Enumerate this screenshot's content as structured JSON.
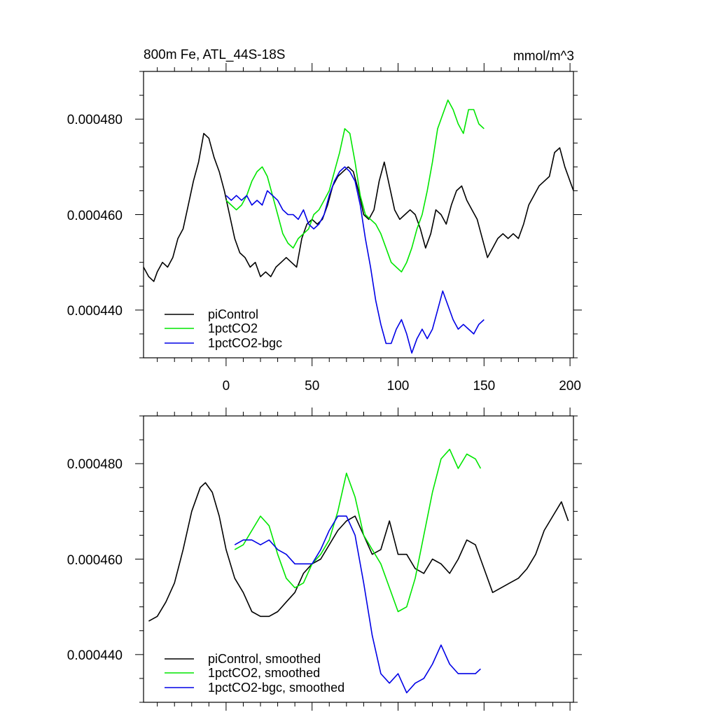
{
  "chart_data": [
    {
      "type": "line",
      "panel": "top",
      "title_left": "800m Fe, ATL_44S-18S",
      "title_right": "mmol/m^3",
      "xlim": [
        -48,
        202
      ],
      "ylim": [
        0.00043,
        0.00049
      ],
      "x_ticks": [
        0,
        50,
        100,
        150,
        200
      ],
      "x_tick_labels": [
        "0",
        "50",
        "100",
        "150",
        "200"
      ],
      "y_ticks": [
        0.00044,
        0.00046,
        0.00048
      ],
      "y_tick_labels": [
        "0.000440",
        "0.000460",
        "0.000480"
      ],
      "legend_position": "bottom-left",
      "series": [
        {
          "name": "piControl",
          "color": "#000000",
          "x": [
            -48,
            -45,
            -42,
            -40,
            -37,
            -34,
            -31,
            -28,
            -25,
            -22,
            -19,
            -16,
            -13,
            -10,
            -7,
            -4,
            -1,
            2,
            5,
            8,
            11,
            14,
            17,
            20,
            23,
            26,
            29,
            32,
            35,
            38,
            41,
            44,
            47,
            50,
            53,
            56,
            59,
            62,
            65,
            68,
            71,
            74,
            77,
            80,
            83,
            86,
            89,
            92,
            95,
            98,
            101,
            104,
            107,
            110,
            113,
            116,
            119,
            122,
            125,
            128,
            131,
            134,
            137,
            140,
            143,
            146,
            149,
            152,
            155,
            158,
            161,
            164,
            167,
            170,
            173,
            176,
            179,
            182,
            185,
            188,
            191,
            194,
            197,
            200,
            202
          ],
          "values": [
            0.000449,
            0.000447,
            0.000446,
            0.000448,
            0.00045,
            0.000449,
            0.000451,
            0.000455,
            0.000457,
            0.000462,
            0.000467,
            0.000471,
            0.000477,
            0.000476,
            0.000472,
            0.000469,
            0.000465,
            0.00046,
            0.000455,
            0.000452,
            0.000451,
            0.000449,
            0.00045,
            0.000447,
            0.000448,
            0.000447,
            0.000449,
            0.00045,
            0.000451,
            0.00045,
            0.000449,
            0.000455,
            0.000458,
            0.000459,
            0.000458,
            0.000459,
            0.000462,
            0.000466,
            0.000468,
            0.000469,
            0.00047,
            0.000469,
            0.000465,
            0.00046,
            0.000459,
            0.000461,
            0.000467,
            0.000471,
            0.000466,
            0.000461,
            0.000459,
            0.00046,
            0.000461,
            0.00046,
            0.000457,
            0.000453,
            0.000456,
            0.000461,
            0.00046,
            0.000458,
            0.000462,
            0.000465,
            0.000466,
            0.000463,
            0.000461,
            0.000459,
            0.000455,
            0.000451,
            0.000453,
            0.000455,
            0.000456,
            0.000455,
            0.000456,
            0.000455,
            0.000458,
            0.000462,
            0.000464,
            0.000466,
            0.000467,
            0.000468,
            0.000473,
            0.000474,
            0.00047,
            0.000467,
            0.000465
          ]
        },
        {
          "name": "1pctCO2",
          "color": "#00e600",
          "x": [
            0,
            3,
            6,
            9,
            12,
            15,
            18,
            21,
            24,
            27,
            30,
            33,
            36,
            39,
            42,
            45,
            48,
            51,
            54,
            57,
            60,
            63,
            66,
            69,
            72,
            75,
            78,
            81,
            84,
            87,
            90,
            93,
            96,
            99,
            102,
            105,
            108,
            111,
            114,
            117,
            120,
            123,
            126,
            129,
            132,
            135,
            138,
            141,
            144,
            147,
            150
          ],
          "values": [
            0.000463,
            0.000462,
            0.000461,
            0.000462,
            0.000464,
            0.000467,
            0.000469,
            0.00047,
            0.000468,
            0.000464,
            0.00046,
            0.000456,
            0.000454,
            0.000453,
            0.000455,
            0.000456,
            0.000457,
            0.00046,
            0.000461,
            0.000463,
            0.000465,
            0.000469,
            0.000473,
            0.000478,
            0.000477,
            0.000471,
            0.000464,
            0.00046,
            0.000459,
            0.000458,
            0.000456,
            0.000453,
            0.00045,
            0.000449,
            0.000448,
            0.00045,
            0.000453,
            0.000457,
            0.00046,
            0.000465,
            0.000471,
            0.000478,
            0.000481,
            0.000484,
            0.000482,
            0.000479,
            0.000477,
            0.000482,
            0.000482,
            0.000479,
            0.000478
          ]
        },
        {
          "name": "1pctCO2-bgc",
          "color": "#0000e6",
          "x": [
            0,
            3,
            6,
            9,
            12,
            15,
            18,
            21,
            24,
            27,
            30,
            33,
            36,
            39,
            42,
            45,
            48,
            51,
            54,
            57,
            60,
            63,
            66,
            69,
            72,
            75,
            78,
            81,
            84,
            87,
            90,
            93,
            96,
            99,
            102,
            105,
            108,
            111,
            114,
            117,
            120,
            123,
            126,
            129,
            132,
            135,
            138,
            141,
            144,
            147,
            150
          ],
          "values": [
            0.000464,
            0.000463,
            0.000464,
            0.000463,
            0.000464,
            0.000462,
            0.000463,
            0.000462,
            0.000465,
            0.000464,
            0.000463,
            0.000461,
            0.00046,
            0.00046,
            0.000459,
            0.000461,
            0.000458,
            0.000457,
            0.000458,
            0.00046,
            0.000464,
            0.000467,
            0.000469,
            0.00047,
            0.000469,
            0.000467,
            0.000462,
            0.000455,
            0.000449,
            0.000442,
            0.000437,
            0.000433,
            0.000433,
            0.000436,
            0.000438,
            0.000435,
            0.000431,
            0.000434,
            0.000436,
            0.000434,
            0.000436,
            0.00044,
            0.000444,
            0.000441,
            0.000438,
            0.000436,
            0.000437,
            0.000436,
            0.000435,
            0.000437,
            0.000438
          ]
        }
      ]
    },
    {
      "type": "line",
      "panel": "bottom",
      "xlim": [
        -48,
        202
      ],
      "ylim": [
        0.00043,
        0.00049
      ],
      "x_ticks": [
        0,
        50,
        100,
        150,
        200
      ],
      "y_ticks": [
        0.00044,
        0.00046,
        0.00048
      ],
      "y_tick_labels": [
        "0.000440",
        "0.000460",
        "0.000480"
      ],
      "legend_position": "bottom-left",
      "series": [
        {
          "name": "piControl, smoothed",
          "color": "#000000",
          "x": [
            -45,
            -40,
            -35,
            -30,
            -25,
            -20,
            -15,
            -12,
            -8,
            -4,
            0,
            5,
            10,
            15,
            20,
            25,
            30,
            35,
            40,
            45,
            50,
            55,
            60,
            65,
            70,
            75,
            80,
            85,
            90,
            95,
            100,
            105,
            110,
            115,
            120,
            125,
            130,
            135,
            140,
            145,
            150,
            155,
            160,
            165,
            170,
            175,
            180,
            185,
            190,
            195,
            199
          ],
          "values": [
            0.000447,
            0.000448,
            0.000451,
            0.000455,
            0.000462,
            0.00047,
            0.000475,
            0.000476,
            0.000474,
            0.000469,
            0.000462,
            0.000456,
            0.000453,
            0.000449,
            0.000448,
            0.000448,
            0.000449,
            0.000451,
            0.000453,
            0.000457,
            0.000459,
            0.00046,
            0.000463,
            0.000466,
            0.000468,
            0.000469,
            0.000465,
            0.000461,
            0.000462,
            0.000468,
            0.000461,
            0.000461,
            0.000458,
            0.000457,
            0.00046,
            0.000459,
            0.000457,
            0.00046,
            0.000464,
            0.000463,
            0.000458,
            0.000453,
            0.000454,
            0.000455,
            0.000456,
            0.000458,
            0.000461,
            0.000466,
            0.000469,
            0.000472,
            0.000468
          ]
        },
        {
          "name": "1pctCO2, smoothed",
          "color": "#00e600",
          "x": [
            5,
            10,
            15,
            20,
            25,
            30,
            35,
            40,
            45,
            50,
            55,
            60,
            65,
            70,
            75,
            80,
            85,
            90,
            95,
            100,
            105,
            110,
            115,
            120,
            125,
            130,
            135,
            140,
            145,
            148
          ],
          "values": [
            0.000462,
            0.000463,
            0.000466,
            0.000469,
            0.000467,
            0.000461,
            0.000456,
            0.000454,
            0.000455,
            0.000459,
            0.000461,
            0.000464,
            0.00047,
            0.000478,
            0.000473,
            0.000465,
            0.000462,
            0.000459,
            0.000454,
            0.000449,
            0.00045,
            0.000456,
            0.000465,
            0.000474,
            0.000481,
            0.000483,
            0.000479,
            0.000482,
            0.000481,
            0.000479
          ]
        },
        {
          "name": "1pctCO2-bgc, smoothed",
          "color": "#0000e6",
          "x": [
            5,
            10,
            15,
            20,
            25,
            30,
            35,
            40,
            45,
            50,
            55,
            60,
            65,
            70,
            75,
            80,
            85,
            90,
            95,
            100,
            105,
            110,
            115,
            120,
            125,
            130,
            135,
            140,
            145,
            148
          ],
          "values": [
            0.000463,
            0.000464,
            0.000464,
            0.000463,
            0.000464,
            0.000462,
            0.000461,
            0.000459,
            0.000459,
            0.000459,
            0.000462,
            0.000466,
            0.000469,
            0.000469,
            0.000465,
            0.000455,
            0.000444,
            0.000436,
            0.000434,
            0.000436,
            0.000432,
            0.000434,
            0.000435,
            0.000438,
            0.000442,
            0.000438,
            0.000436,
            0.000436,
            0.000436,
            0.000437
          ]
        }
      ]
    }
  ]
}
